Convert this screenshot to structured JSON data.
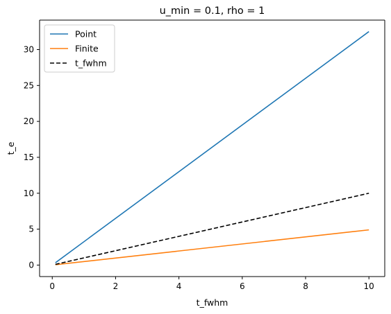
{
  "chart_data": {
    "type": "line",
    "title": "u_min = 0.1, rho = 1",
    "xlabel": "t_fwhm",
    "ylabel": "t_e",
    "xlim": [
      -0.4,
      10.5
    ],
    "ylim": [
      -1.6,
      34.1
    ],
    "xticks": [
      0,
      2,
      4,
      6,
      8,
      10
    ],
    "yticks": [
      0,
      5,
      10,
      15,
      20,
      25,
      30
    ],
    "grid": false,
    "legend_position": "top-left",
    "series": [
      {
        "name": "Point",
        "color": "#1f77b4",
        "dash": "solid",
        "x": [
          0.1,
          10
        ],
        "y": [
          0.325,
          32.5
        ]
      },
      {
        "name": "Finite",
        "color": "#ff7f0e",
        "dash": "solid",
        "x": [
          0.1,
          10
        ],
        "y": [
          0.05,
          4.9
        ]
      },
      {
        "name": "t_fwhm",
        "color": "#000000",
        "dash": "dashed",
        "x": [
          0.1,
          10
        ],
        "y": [
          0.1,
          10
        ]
      }
    ]
  }
}
